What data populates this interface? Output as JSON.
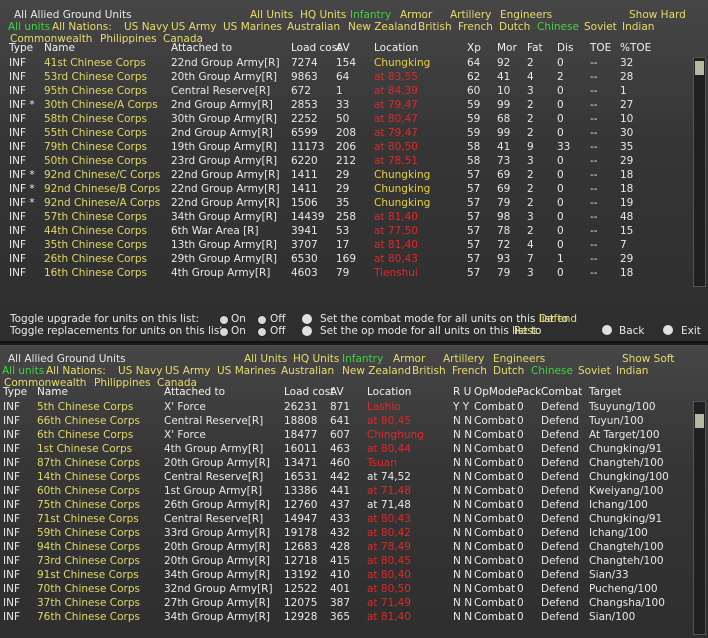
{
  "top": {
    "title": "All Allied Ground Units",
    "unit_types": [
      "All Units",
      "HQ Units",
      "Infantry",
      "Armor",
      "Artillery",
      "Engineers"
    ],
    "unit_type_colors": [
      "#e8dc6a",
      "#e8dc6a",
      "#3fd43f",
      "#e8dc6a",
      "#e8dc6a",
      "#e8dc6a"
    ],
    "show": "Show Hard",
    "nations": [
      "All units",
      "All Nations:",
      "US Navy",
      "US Army",
      "US Marines",
      "Australian",
      "New Zealand",
      "British",
      "French",
      "Dutch",
      "Chinese",
      "Soviet",
      "Indian"
    ],
    "nation_colors": [
      "#3fd43f",
      "#e8dc6a",
      "#e8dc6a",
      "#e8dc6a",
      "#e8dc6a",
      "#e8dc6a",
      "#e8dc6a",
      "#e8dc6a",
      "#e8dc6a",
      "#e8dc6a",
      "#3fd43f",
      "#e8dc6a",
      "#e8dc6a"
    ],
    "nations2": [
      "Commonwealth",
      "Philippines",
      "Canada"
    ],
    "columns": [
      "Type",
      "Name",
      "Attached to",
      "Load cost",
      "AV",
      "Location",
      "Xp",
      "Mor",
      "Fat",
      "Dis",
      "TOE",
      "%TOE"
    ],
    "rows": [
      [
        "INF",
        "41st Chinese Corps",
        "22nd Group Army[R]",
        7274,
        154,
        "Chungking",
        64,
        92,
        2,
        0,
        "--",
        32
      ],
      [
        "INF",
        "53rd Chinese Corps",
        "20th Group Army[R]",
        9863,
        64,
        "at 83,55",
        62,
        41,
        4,
        2,
        "--",
        28
      ],
      [
        "INF",
        "95th Chinese Corps",
        "Central Reserve[R]",
        672,
        1,
        "at 84,39",
        60,
        10,
        3,
        0,
        "--",
        1
      ],
      [
        "INF *",
        "30th Chinese/A Corps",
        "2nd Group Army[R]",
        2853,
        33,
        "at 79,47",
        59,
        99,
        2,
        0,
        "--",
        27
      ],
      [
        "INF",
        "58th Chinese Corps",
        "30th Group Army[R]",
        2252,
        50,
        "at 80,47",
        59,
        68,
        2,
        0,
        "--",
        10
      ],
      [
        "INF",
        "55th Chinese Corps",
        "2nd Group Army[R]",
        6599,
        208,
        "at 79,47",
        59,
        99,
        2,
        0,
        "--",
        30
      ],
      [
        "INF",
        "79th Chinese Corps",
        "19th Group Army[R]",
        11173,
        206,
        "at 80,50",
        58,
        41,
        9,
        33,
        "--",
        35
      ],
      [
        "INF",
        "50th Chinese Corps",
        "23rd Group Army[R]",
        6220,
        212,
        "at 78,51",
        58,
        73,
        3,
        0,
        "--",
        29
      ],
      [
        "INF *",
        "92nd Chinese/C Corps",
        "22nd Group Army[R]",
        1411,
        29,
        "Chungking",
        57,
        69,
        2,
        0,
        "--",
        18
      ],
      [
        "INF *",
        "92nd Chinese/B Corps",
        "22nd Group Army[R]",
        1411,
        29,
        "Chungking",
        57,
        69,
        2,
        0,
        "--",
        18
      ],
      [
        "INF *",
        "92nd Chinese/A Corps",
        "22nd Group Army[R]",
        1506,
        35,
        "Chungking",
        57,
        79,
        2,
        0,
        "--",
        19
      ],
      [
        "INF",
        "57th Chinese Corps",
        "34th Group Army[R]",
        14439,
        258,
        "at 81,40",
        57,
        98,
        3,
        0,
        "--",
        48
      ],
      [
        "INF",
        "44th Chinese Corps",
        "6th War Area [R]",
        3941,
        53,
        "at 77,50",
        57,
        78,
        2,
        0,
        "--",
        15
      ],
      [
        "INF",
        "35th Chinese Corps",
        "13th Group Army[R]",
        3707,
        17,
        "at 81,40",
        57,
        72,
        4,
        0,
        "--",
        7
      ],
      [
        "INF",
        "26th Chinese Corps",
        "29th Group Army[R]",
        6530,
        169,
        "at 80,43",
        57,
        93,
        7,
        1,
        "--",
        29
      ],
      [
        "INF",
        "16th Chinese Corps",
        "4th Group Army[R]",
        4603,
        79,
        "Tienshui",
        57,
        79,
        3,
        0,
        "--",
        18
      ]
    ],
    "location_colors": [
      "#e8d040",
      "#e02828",
      "#e02828",
      "#e02828",
      "#e02828",
      "#e02828",
      "#e02828",
      "#e02828",
      "#e8d040",
      "#e8d040",
      "#e8d040",
      "#e02828",
      "#e02828",
      "#e02828",
      "#e02828",
      "#e02828"
    ],
    "footer": {
      "upgrade": "Toggle upgrade for units on this list:",
      "replacements": "Toggle replacements for units on this list:",
      "on": "On",
      "off": "Off",
      "combat_mode": "Set the combat mode for all units on this list to",
      "combat_value": "Defend",
      "op_mode": "Set the op mode for all units on this list to",
      "op_value": "Rest",
      "back": "Back",
      "exit": "Exit"
    }
  },
  "bottom": {
    "title": "All Allied Ground Units",
    "unit_types": [
      "All Units",
      "HQ Units",
      "Infantry",
      "Armor",
      "Artillery",
      "Engineers"
    ],
    "unit_type_colors": [
      "#e8dc6a",
      "#e8dc6a",
      "#3fd43f",
      "#e8dc6a",
      "#e8dc6a",
      "#e8dc6a"
    ],
    "show": "Show Soft",
    "nations": [
      "All units",
      "All Nations:",
      "US Navy",
      "US Army",
      "US Marines",
      "Australian",
      "New Zealand",
      "British",
      "French",
      "Dutch",
      "Chinese",
      "Soviet",
      "Indian"
    ],
    "nation_colors": [
      "#3fd43f",
      "#e8dc6a",
      "#e8dc6a",
      "#e8dc6a",
      "#e8dc6a",
      "#e8dc6a",
      "#e8dc6a",
      "#e8dc6a",
      "#e8dc6a",
      "#e8dc6a",
      "#3fd43f",
      "#e8dc6a",
      "#e8dc6a"
    ],
    "nations2": [
      "Commonwealth",
      "Philippines",
      "Canada"
    ],
    "columns": [
      "Type",
      "Name",
      "Attached to",
      "Load cost",
      "AV",
      "Location",
      "R U",
      "OpMode",
      "Pack",
      "Combat",
      "Target"
    ],
    "rows": [
      [
        "INF",
        "5th Chinese Corps",
        "X' Force",
        26231,
        871,
        "Lashio",
        "Y Y",
        "Combat",
        0,
        "Defend",
        "Tsuyung/100"
      ],
      [
        "INF",
        "66th Chinese Corps",
        "Central Reserve[R]",
        18808,
        641,
        "at 80,45",
        "N N",
        "Combat",
        0,
        "Defend",
        "Tuyun/100"
      ],
      [
        "INF",
        "6th Chinese Corps",
        "X' Force",
        18477,
        607,
        "Chinghung",
        "N N",
        "Combat",
        0,
        "Defend",
        "At Target/100"
      ],
      [
        "INF",
        "1st Chinese Corps",
        "4th Group Army[R]",
        16011,
        463,
        "at 80,44",
        "N N",
        "Combat",
        0,
        "Defend",
        "Chungking/91"
      ],
      [
        "INF",
        "87th Chinese Corps",
        "20th Group Army[R]",
        13471,
        460,
        "Tsuan",
        "N N",
        "Combat",
        0,
        "Defend",
        "Changteh/100"
      ],
      [
        "INF",
        "14th Chinese Corps",
        "Central Reserve[R]",
        16531,
        442,
        "at 74,52",
        "N N",
        "Combat",
        0,
        "Defend",
        "Chungking/100"
      ],
      [
        "INF",
        "60th Chinese Corps",
        "1st Group Army[R]",
        13386,
        441,
        "at 71,48",
        "N N",
        "Combat",
        0,
        "Defend",
        "Kweiyang/100"
      ],
      [
        "INF",
        "75th Chinese Corps",
        "26th Group Army[R]",
        12760,
        437,
        "at 71,48",
        "N N",
        "Combat",
        0,
        "Defend",
        "Ichang/100"
      ],
      [
        "INF",
        "71st Chinese Corps",
        "Central Reserve[R]",
        14947,
        433,
        "at 80,43",
        "N N",
        "Combat",
        0,
        "Defend",
        "Chungking/91"
      ],
      [
        "INF",
        "59th Chinese Corps",
        "33rd Group Army[R]",
        19178,
        432,
        "at 80,42",
        "N N",
        "Combat",
        0,
        "Defend",
        "Ichang/100"
      ],
      [
        "INF",
        "94th Chinese Corps",
        "20th Group Army[R]",
        12683,
        428,
        "at 78,49",
        "N N",
        "Combat",
        0,
        "Defend",
        "Changteh/100"
      ],
      [
        "INF",
        "73rd Chinese Corps",
        "20th Group Army[R]",
        12718,
        415,
        "at 80,45",
        "N N",
        "Combat",
        0,
        "Defend",
        "Changteh/100"
      ],
      [
        "INF",
        "91st Chinese Corps",
        "34th Group Army[R]",
        13192,
        410,
        "at 80,40",
        "N N",
        "Combat",
        0,
        "Defend",
        "Sian/33"
      ],
      [
        "INF",
        "70th Chinese Corps",
        "32nd Group Army[R]",
        12522,
        401,
        "at 80,50",
        "N N",
        "Combat",
        0,
        "Defend",
        "Pucheng/100"
      ],
      [
        "INF",
        "37th Chinese Corps",
        "27th Group Army[R]",
        12075,
        387,
        "at 71,49",
        "N N",
        "Combat",
        0,
        "Defend",
        "Changsha/100"
      ],
      [
        "INF",
        "76th Chinese Corps",
        "34th Group Army[R]",
        12928,
        365,
        "at 81,40",
        "N N",
        "Combat",
        0,
        "Defend",
        "Sian/100"
      ]
    ],
    "location_colors": [
      "#e02828",
      "#e02828",
      "#e02828",
      "#e02828",
      "#e02828",
      "#e8e8e8",
      "#e02828",
      "#e8e8e8",
      "#e02828",
      "#e02828",
      "#e02828",
      "#e02828",
      "#e02828",
      "#e02828",
      "#e02828",
      "#e02828"
    ]
  }
}
